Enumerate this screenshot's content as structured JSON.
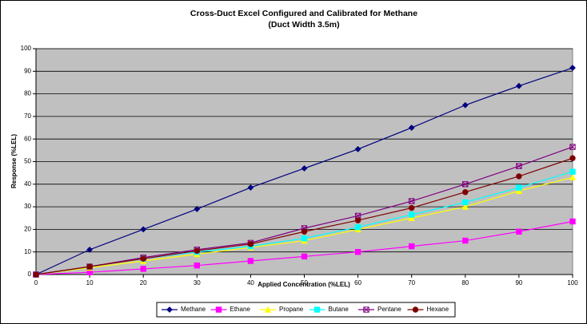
{
  "chart_data": {
    "type": "line",
    "title": "Cross-Duct Excel Configured and Calibrated for Methane",
    "subtitle": "(Duct Width 3.5m)",
    "x_label": "Applied Concentration (%LEL)",
    "y_label": "Response (%LEL)",
    "x": [
      0,
      10,
      20,
      30,
      40,
      50,
      60,
      70,
      80,
      90,
      100
    ],
    "xlim": [
      0,
      100
    ],
    "xticks": [
      0,
      10,
      20,
      30,
      40,
      50,
      60,
      70,
      80,
      90,
      100
    ],
    "ylim": [
      0,
      100
    ],
    "yticks": [
      0,
      10,
      20,
      30,
      40,
      50,
      60,
      70,
      80,
      90,
      100
    ],
    "grid": true,
    "plot_background": "#c0c0c0",
    "legend": "bottom",
    "series": [
      {
        "name": "Methane",
        "color": "#000080",
        "marker": "diamond",
        "values": [
          0,
          11,
          20,
          29,
          38.5,
          47,
          55.5,
          65,
          75,
          83.5,
          91.5
        ]
      },
      {
        "name": "Ethane",
        "color": "#ff00ff",
        "marker": "square",
        "values": [
          0,
          1,
          2.5,
          4,
          6,
          8,
          10,
          12.5,
          15,
          19,
          23.5
        ]
      },
      {
        "name": "Propane",
        "color": "#ffff00",
        "marker": "triangle",
        "values": [
          0,
          3,
          6,
          9,
          12,
          15,
          20,
          25,
          30,
          37,
          43
        ]
      },
      {
        "name": "Butane",
        "color": "#00ffff",
        "marker": "square",
        "values": [
          0,
          3.5,
          7,
          10,
          12.5,
          16,
          21,
          26.5,
          32,
          38.5,
          45.5
        ]
      },
      {
        "name": "Pentane",
        "color": "#800080",
        "marker": "crossed-square",
        "values": [
          0,
          3.5,
          7.5,
          11,
          14,
          20.5,
          26,
          32.5,
          40,
          48,
          56.5
        ]
      },
      {
        "name": "Hexane",
        "color": "#800000",
        "marker": "circle",
        "values": [
          0,
          3.5,
          7,
          10.5,
          13.5,
          19,
          24,
          29.5,
          36.5,
          43.5,
          51.5
        ]
      }
    ]
  }
}
